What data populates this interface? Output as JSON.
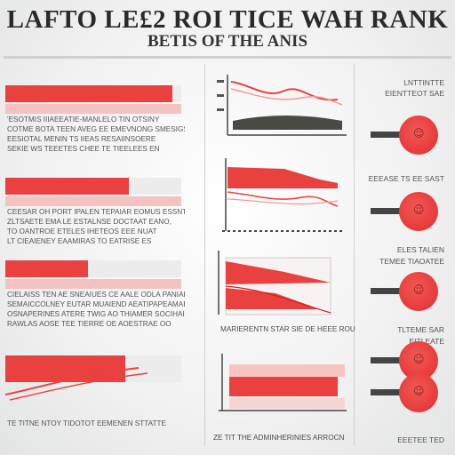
{
  "header": {
    "title": "LAFTO LE£2 ROI TICE WAH RANK",
    "subtitle": "BETIS OF THE ANIS"
  },
  "left_panels": [
    {
      "bar_fill": 0.95,
      "band": true,
      "caption": [
        "'ESOTMIS IIIAEEATIE-MANLELO TIN OTSINY",
        "COTME BOTA TEEN AVEG EE EMEVNONG SMESIGS",
        "EESIOTAL MENIN TS IIEAS RESAIINSOERE",
        "SEKIE WS TEEETES CHEE TE TIEELEES EN"
      ]
    },
    {
      "bar_fill": 0.7,
      "band": true,
      "caption": [
        "CEESAR OH PORT IPALEN TEPAIAR EOMUS ESSNTS,",
        "ZLTSAETE EMA LE ESTALNSE DOCTAAT EANO,",
        "TO OANTROE ETELES IHETEOS EEE NUAT",
        "LT CIEAIENEY EAAMIRAS TO EATRISE ES"
      ]
    },
    {
      "bar_fill": 0.47,
      "band": true,
      "caption": [
        "CIELAISS TEN AE SNEAIUES CE AALE ODLA PANIAE",
        "SEMAICCOLNEY EUTAR MUAIEND AEATIPAPEAMAEN",
        "OSNAPERINES ATERE TWIG AO THIAMER SOCIHAIRE",
        "RAWLAS AOSE TEE TIERRE OE AOESTRAE OO"
      ]
    },
    {
      "bar_fill": 0.68,
      "band": false,
      "caption": [
        "TE TITNE NTOY TIDOTOT EEMENEN STTATTE"
      ]
    }
  ],
  "charts": [
    {
      "type": "line",
      "caption": ""
    },
    {
      "type": "area",
      "caption": ""
    },
    {
      "type": "area",
      "caption": "MARIERENTN STAR SIE DE HEEE ROU"
    },
    {
      "type": "bar",
      "caption": "ZE TIT THE ADMINHERINIES ARROCN"
    }
  ],
  "stats": [
    {
      "label": "LNTTINTTE"
    },
    {
      "label": "EIENTTEOT SAE"
    },
    {
      "label": "EEEASE TS EE SAST"
    },
    {
      "label": "ELES TALIEN"
    },
    {
      "label": "TEMEE TIAOATEE"
    },
    {
      "label": "TLTEME SAR"
    },
    {
      "label": "EITLEATE"
    },
    {
      "label": "EEETEE TED"
    }
  ],
  "colors": {
    "accent": "#e8413f",
    "accent_light": "#f4c3c0",
    "dark": "#3a3a3a",
    "background": "#f1f1f1"
  },
  "icons": [
    "face-icon",
    "face-icon",
    "face-icon",
    "face-icon",
    "face-icon",
    "face-icon"
  ]
}
